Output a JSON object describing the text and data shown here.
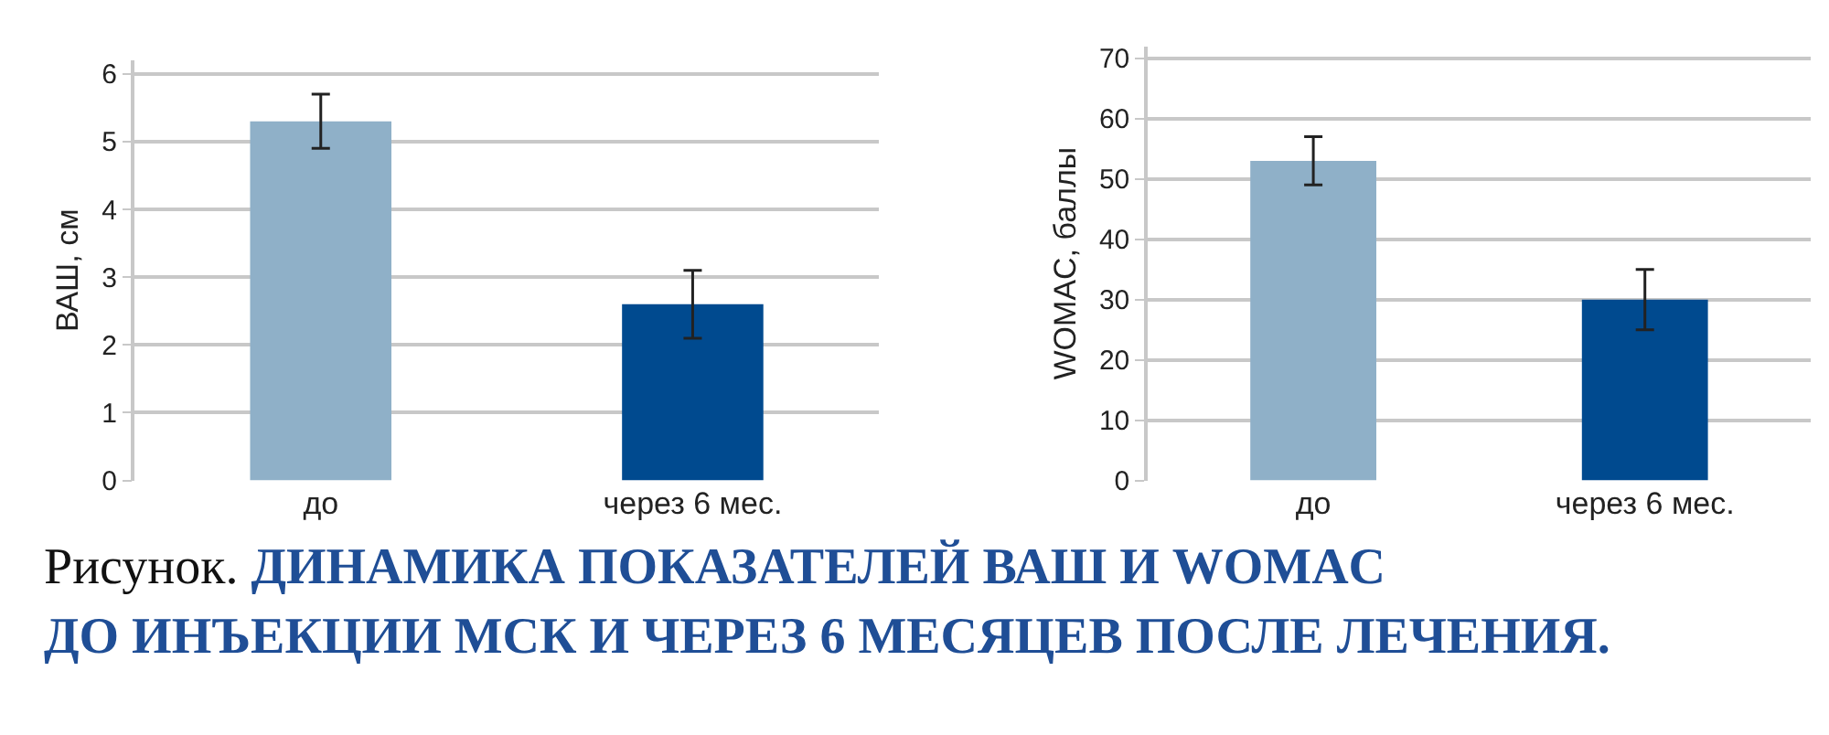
{
  "chart_data": [
    {
      "type": "bar",
      "ylabel": "ВАШ, см",
      "categories": [
        "до",
        "через 6 мес."
      ],
      "values": [
        5.3,
        2.6
      ],
      "errors": [
        0.4,
        0.5
      ],
      "colors": [
        "#8fb0c8",
        "#004a8f"
      ],
      "ylim": [
        0,
        6.2
      ],
      "yticks": [
        0,
        1,
        2,
        3,
        4,
        5,
        6
      ],
      "grid": "y",
      "annotations": [
        "Рисунок.",
        "ДИНАМИКА ПОКАЗАТЕЛЕЙ ВАШ И WOMAC",
        "ДО ИНЪЕКЦИИ МСК И ЧЕРЕЗ 6 МЕСЯЦЕВ ПОСЛЕ ЛЕЧЕНИЯ."
      ]
    },
    {
      "type": "bar",
      "ylabel": "WOMAC, баллы",
      "categories": [
        "до",
        "через 6 мес."
      ],
      "values": [
        53,
        30
      ],
      "errors": [
        4,
        5
      ],
      "colors": [
        "#8fb0c8",
        "#004a8f"
      ],
      "ylim": [
        0,
        72
      ],
      "yticks": [
        0,
        10,
        20,
        30,
        40,
        50,
        60,
        70
      ],
      "grid": "y"
    }
  ]
}
